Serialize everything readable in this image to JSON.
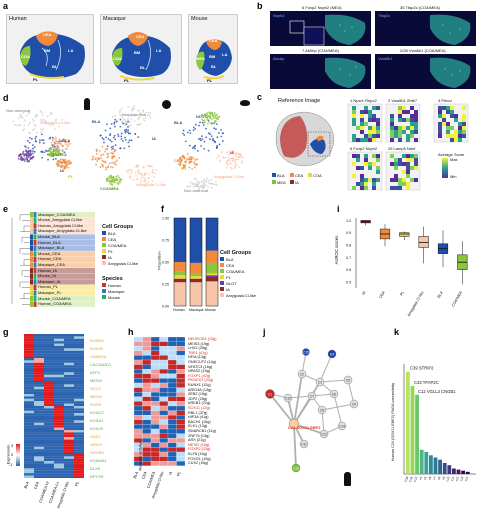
{
  "panels": {
    "a": "a",
    "b": "b",
    "c": "c",
    "d": "d",
    "e": "e",
    "f": "f",
    "g": "g",
    "h": "h",
    "i": "i",
    "j": "j",
    "k": "k"
  },
  "a": {
    "species": [
      "Human",
      "Macaque",
      "Mouse"
    ],
    "human_regions": [
      "CEA",
      "BM",
      "LA",
      "COA",
      "BL",
      "PL"
    ],
    "macaque_regions": [
      "CEA",
      "BM",
      "LA",
      "COA",
      "BL",
      "PL"
    ],
    "mouse_regions": [
      "CEA",
      "LA",
      "BM",
      "BL",
      "MEA",
      "PL"
    ],
    "axes": {
      "d": "D",
      "m": "M",
      "l": "L"
    }
  },
  "b": {
    "tiles": [
      {
        "title": "6 Foxp2 Nxph2 (MEA)",
        "gene": "Nxph2"
      },
      {
        "title": "35 Tfap2c (COA/MEA)",
        "gene": "Tfap2c"
      },
      {
        "title": "7 Ab0bp (COA/MEA)",
        "gene": "Abcbp"
      },
      {
        "title": "2/28 Vwa5b1 (COA/MEA)",
        "gene": "Vwa5b1"
      }
    ]
  },
  "c": {
    "reference_title": "Reference Image",
    "legend": [
      "BLA",
      "CEA",
      "COA",
      "MEA",
      "IA"
    ],
    "tiles": [
      "1 Npsr1 Rspo2",
      "2 Vwa5b1 Zbtb7",
      "4 Prkcd",
      "6 Foxp2 Nxph2",
      "25 Lamp5 Ndnf"
    ],
    "score_title": "Average Score",
    "score_max": "Max",
    "score_min": "Min",
    "colors": {
      "BLA": "#1f4fa8",
      "CEA": "#f08a3c",
      "COA": "#f2d43a",
      "MEA": "#7fbf3f",
      "IA": "#8b2a2a"
    }
  },
  "d": {
    "labels_human": [
      "Non-neuronal",
      "Amygdala Cl-like",
      "BLA",
      "COA/MEA",
      "CEA",
      "NLOT",
      "IA",
      "PL"
    ],
    "labels_macaque": [
      "Non-neuronal",
      "BLA",
      "CEA",
      "COA/MEA",
      "Amygdala Cl-like",
      "IA"
    ],
    "labels_mouse": [
      "NLOT",
      "BLA",
      "CEA",
      "PL",
      "Non-neuronal",
      "Amygdala Cl-like",
      "IA"
    ]
  },
  "e": {
    "rows": [
      "Macaque_COA/MEA",
      "Mouse_Amygdala Cl-like",
      "Human_Amygdala Cl-like",
      "Macaque_Amygdala Cl-like",
      "Mouse_BLA",
      "Human_BLA",
      "Macaque_BLA",
      "Mouse_CEA",
      "Human_CEA",
      "Macaque_CEA",
      "Human_IA",
      "Mouse_IA",
      "Macaque_IA",
      "Human_PL",
      "Macaque_PL",
      "Mouse_COA/MEA",
      "Human_COA/MEA"
    ],
    "legend_cell_title": "Cell Groups",
    "legend_cell": [
      "BLA",
      "CEA",
      "COA/MEA",
      "PL",
      "IA",
      "Amygdala Cl-like"
    ],
    "legend_species_title": "Species",
    "legend_species": [
      "Human",
      "Macaque",
      "Mouse"
    ]
  },
  "f": {
    "ylabel": "Proportion",
    "xticks": [
      "Human",
      "Macaque",
      "Mouse"
    ],
    "yticks": [
      "0.00",
      "0.25",
      "0.50",
      "0.75",
      "1.00"
    ],
    "legend_title": "Cell Groups",
    "legend": [
      "BLA",
      "CEA",
      "COA/MEA",
      "PL",
      "NLOT",
      "IA",
      "Amygdala Cl-like"
    ]
  },
  "chart_data": [
    {
      "type": "bar",
      "title": "",
      "ylabel": "Proportion",
      "categories": [
        "Human",
        "Macaque",
        "Mouse"
      ],
      "ylim": [
        0,
        1
      ],
      "series": [
        {
          "name": "Amygdala Cl-like",
          "values": [
            0.27,
            0.27,
            0.28
          ]
        },
        {
          "name": "IA",
          "values": [
            0.04,
            0.04,
            0.05
          ]
        },
        {
          "name": "NLOT",
          "values": [
            0.0,
            0.0,
            0.02
          ]
        },
        {
          "name": "PL",
          "values": [
            0.04,
            0.03,
            0.02
          ]
        },
        {
          "name": "COA/MEA",
          "values": [
            0.04,
            0.03,
            0.12
          ]
        },
        {
          "name": "CEA",
          "values": [
            0.11,
            0.12,
            0.14
          ]
        },
        {
          "name": "BLA",
          "values": [
            0.5,
            0.51,
            0.37
          ]
        }
      ],
      "colors": {
        "BLA": "#1f4fa8",
        "CEA": "#f08a3c",
        "COA/MEA": "#8cc63f",
        "PL": "#f2d43a",
        "NLOT": "#6a3d9a",
        "IA": "#8b2a2a",
        "Amygdala Cl-like": "#f7c6a8"
      }
    },
    {
      "type": "box",
      "title": "",
      "ylabel": "AUROC scores",
      "categories": [
        "IA",
        "CEA",
        "PL",
        "Amygdala Cl-like",
        "BLA",
        "COA/MEA"
      ],
      "yticks": [
        "0.5",
        "0.6",
        "0.7",
        "0.8",
        "0.9",
        "1.0"
      ],
      "ylim": [
        0.45,
        1.02
      ],
      "boxes": [
        {
          "name": "IA",
          "min": 0.96,
          "q1": 0.98,
          "median": 0.99,
          "q3": 1.0,
          "max": 1.0,
          "color": "#8b2a2a"
        },
        {
          "name": "CEA",
          "min": 0.79,
          "q1": 0.85,
          "median": 0.89,
          "q3": 0.93,
          "max": 0.97,
          "color": "#f08a3c"
        },
        {
          "name": "PL",
          "min": 0.84,
          "q1": 0.87,
          "median": 0.89,
          "q3": 0.9,
          "max": 0.91,
          "color": "#f2d43a"
        },
        {
          "name": "Amygdala Cl-like",
          "min": 0.65,
          "q1": 0.78,
          "median": 0.82,
          "q3": 0.87,
          "max": 0.95,
          "color": "#f7c6a8"
        },
        {
          "name": "BLA",
          "min": 0.62,
          "q1": 0.73,
          "median": 0.77,
          "q3": 0.81,
          "max": 0.92,
          "color": "#1f4fa8"
        },
        {
          "name": "COA/MEA",
          "min": 0.48,
          "q1": 0.6,
          "median": 0.66,
          "q3": 0.72,
          "max": 0.83,
          "color": "#8cc63f"
        }
      ]
    },
    {
      "type": "bar",
      "title": "",
      "ylabel": "Human C24 (SOX11 EBF2) PAGA connectivity",
      "categories": [
        "C39",
        "C43",
        "C12",
        "c4",
        "c5",
        "c6",
        "c7",
        "c8",
        "c9",
        "c10",
        "c11",
        "c12",
        "c13",
        "c14"
      ],
      "values": [
        0.93,
        0.8,
        0.72,
        0.22,
        0.2,
        0.17,
        0.15,
        0.13,
        0.1,
        0.08,
        0.05,
        0.04,
        0.03,
        0.02
      ],
      "annotations": [
        "C39 STRIP2",
        "C43 TFAP2C",
        "C12 VGLL3 CNGB1"
      ]
    }
  ],
  "g": {
    "xticks": [
      "BLA",
      "CEA",
      "COA/MEA-Hi",
      "COA/MEA-Lo",
      "Amygdala Cl-like",
      "PL"
    ],
    "gene_labels": [
      "KCNN3",
      "KCNJ6",
      "CAMK2A",
      "CACNA2D1",
      "AFF3",
      "MEIS2",
      "SCG2",
      "NRGN",
      "RGS9",
      "KCNC2",
      "KCNA1",
      "KCNJ9",
      "GAD1",
      "GRIK3",
      "HOXB3",
      "KCNMA1",
      "DLX5",
      "NPY2R"
    ],
    "legend_title": "Expression",
    "legend_ticks": [
      "3",
      "0",
      "-1"
    ]
  },
  "h": {
    "genes": [
      "NEUROD2 (13g)",
      "MEIS3 (19g)",
      "LHX2 (25g)",
      "TBR1 (41g)",
      "NFIA (13g)",
      "ONECUT2 (14g)",
      "NFATC3 (16g)",
      "NPAS2 (15g)",
      "FOXP1 (42g)",
      "PKNOX1 (24g)",
      "RUNX1 (12g)",
      "ARID3A (13g)",
      "ZEB2 (15g)",
      "JDP2 (28g)",
      "KREB1 (21g)",
      "SOX11 (12g)",
      "RBL1 (37g)",
      "HIF3A (41g)",
      "BACH1 (15g)",
      "ELK1 (13g)",
      "SMARCB1 (11g)",
      "ZNF76 (13g)",
      "ARX (21g)",
      "MEIS2 (16g)",
      "FOXP2 (23g)",
      "KLF8 (15g)",
      "FOXG1 (10g)",
      "CUX2 (18g)"
    ],
    "red_genes": [
      "NEUROD2 (13g)",
      "TBR1 (41g)",
      "FOXP1 (42g)",
      "PKNOX1 (24g)",
      "SOX11 (12g)",
      "MEIS2 (16g)",
      "FOXP2 (23g)"
    ],
    "xticks": [
      "BLA",
      "CEA",
      "COA/MEA",
      "Amygdala Cl-like",
      "IA",
      "PL"
    ],
    "legend_title": "Regulon activity"
  },
  "j": {
    "center_label": "C24 SOX11 EBF2",
    "nodes": [
      "C1",
      "C2",
      "C3",
      "C4",
      "C5",
      "C6",
      "C7",
      "C8",
      "C9",
      "C10",
      "C11",
      "C12",
      "C13",
      "C14",
      "C15",
      "C16",
      "C17",
      "C18",
      "C19",
      "C20",
      "C21",
      "C22",
      "C23",
      "C24",
      "C25"
    ]
  },
  "k": {
    "annotations": [
      "C39 STRIP2",
      "C43 TFAP2C",
      "C12 VGLL3 CNGB1"
    ],
    "ylabel": "Human C24 (SOX11 EBF2) PAGA connectivity"
  }
}
